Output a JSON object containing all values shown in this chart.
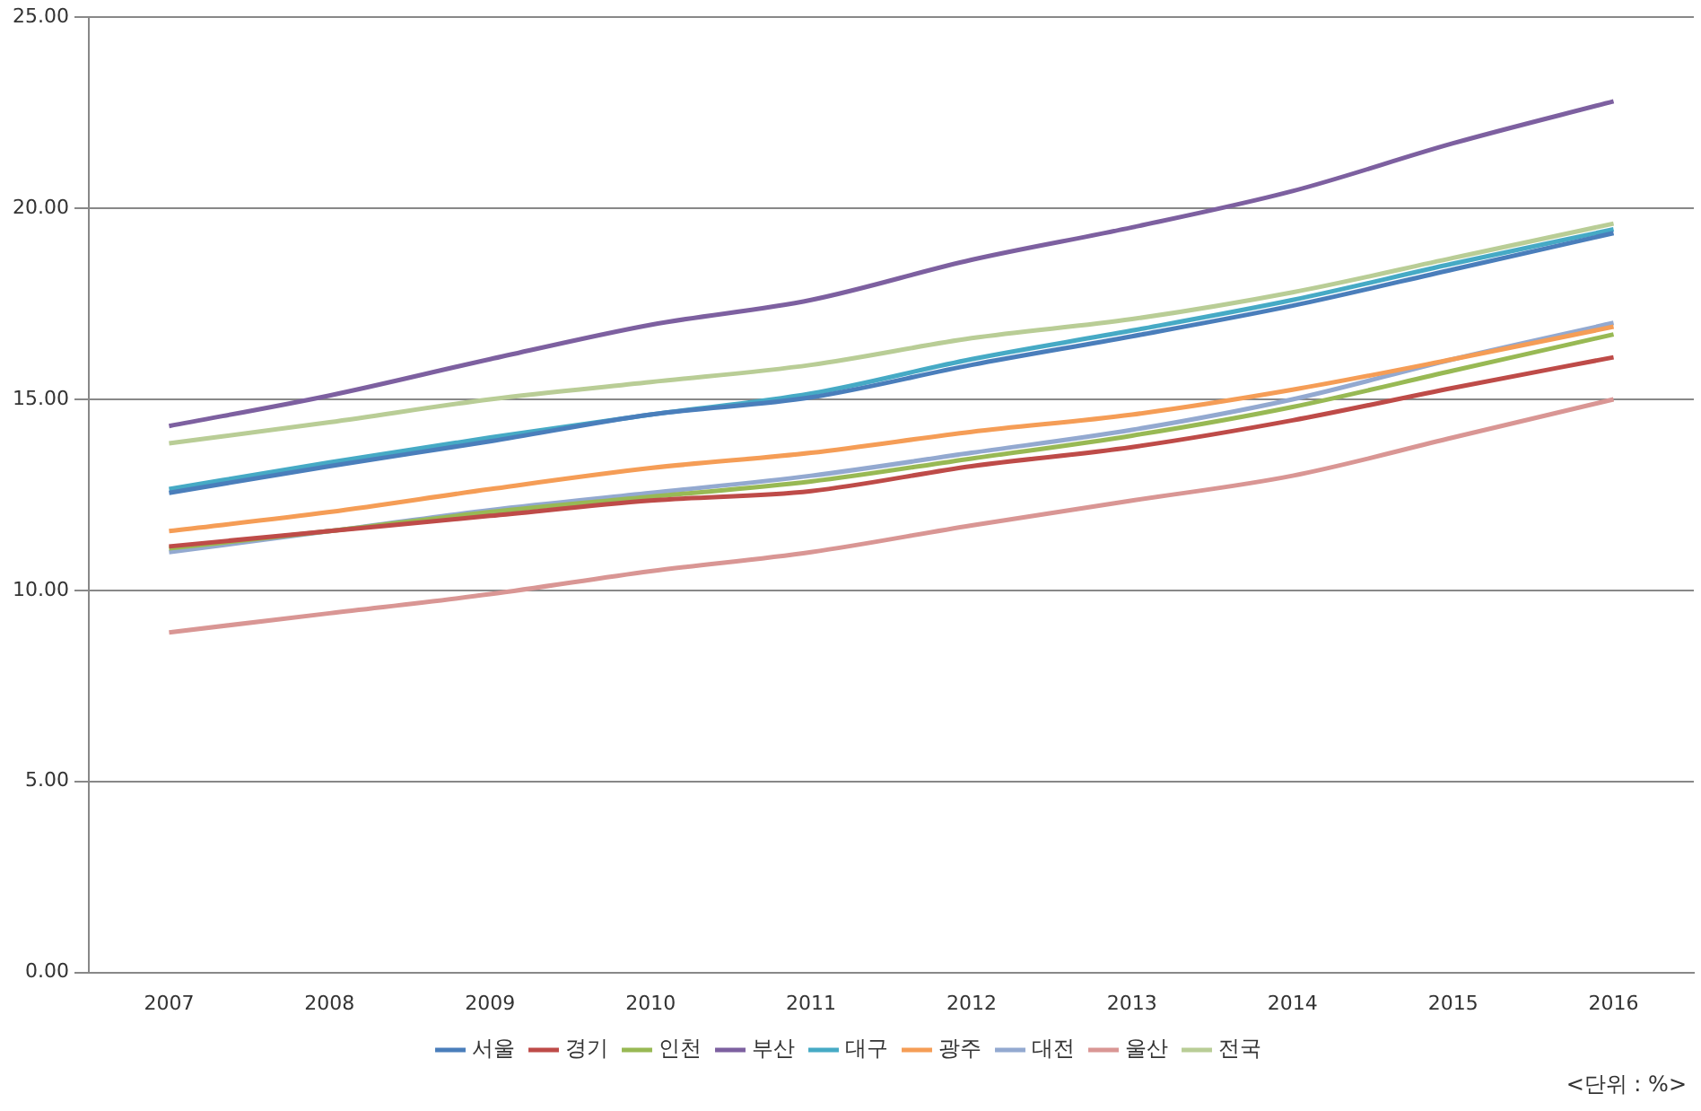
{
  "chart_data": {
    "type": "line",
    "categories": [
      "2007",
      "2008",
      "2009",
      "2010",
      "2011",
      "2012",
      "2013",
      "2014",
      "2015",
      "2016"
    ],
    "series": [
      {
        "name": "서울",
        "color": "#4a7ebb",
        "values": [
          12.55,
          13.25,
          13.9,
          14.6,
          15.05,
          15.9,
          16.65,
          17.45,
          18.4,
          19.35
        ]
      },
      {
        "name": "경기",
        "color": "#be4b48",
        "values": [
          11.15,
          11.55,
          11.95,
          12.35,
          12.6,
          13.25,
          13.75,
          14.45,
          15.3,
          16.1
        ]
      },
      {
        "name": "인천",
        "color": "#98b954",
        "values": [
          11.1,
          11.55,
          12.05,
          12.45,
          12.85,
          13.45,
          14.05,
          14.8,
          15.75,
          16.7
        ]
      },
      {
        "name": "부산",
        "color": "#7d60a0",
        "values": [
          14.3,
          15.1,
          16.05,
          16.95,
          17.6,
          18.65,
          19.5,
          20.45,
          21.7,
          22.8
        ]
      },
      {
        "name": "대구",
        "color": "#46aac5",
        "values": [
          12.65,
          13.35,
          14.0,
          14.6,
          15.15,
          16.05,
          16.8,
          17.6,
          18.55,
          19.45
        ]
      },
      {
        "name": "광주",
        "color": "#f59d56",
        "values": [
          11.55,
          12.05,
          12.65,
          13.2,
          13.6,
          14.15,
          14.6,
          15.25,
          16.05,
          16.9
        ]
      },
      {
        "name": "대전",
        "color": "#93a9d0",
        "values": [
          11.0,
          11.55,
          12.1,
          12.55,
          13.0,
          13.6,
          14.2,
          15.0,
          16.05,
          17.0
        ]
      },
      {
        "name": "울산",
        "color": "#d99694",
        "values": [
          8.9,
          9.4,
          9.9,
          10.5,
          11.0,
          11.7,
          12.35,
          13.0,
          14.0,
          15.0
        ]
      },
      {
        "name": "전국",
        "color": "#b9cd96",
        "values": [
          13.85,
          14.4,
          15.0,
          15.45,
          15.9,
          16.6,
          17.1,
          17.8,
          18.7,
          19.6
        ]
      }
    ],
    "ylim": [
      0,
      25
    ],
    "yticks": [
      {
        "value": 0,
        "label": "0.00"
      },
      {
        "value": 5,
        "label": "5.00"
      },
      {
        "value": 10,
        "label": "10.00"
      },
      {
        "value": 15,
        "label": "15.00"
      },
      {
        "value": 20,
        "label": "20.00"
      },
      {
        "value": 25,
        "label": "25.00"
      }
    ],
    "grid": "y",
    "legend": "bottom",
    "marker": "none",
    "line_style": "solid",
    "annotations": [
      "<단위 : %>"
    ]
  }
}
